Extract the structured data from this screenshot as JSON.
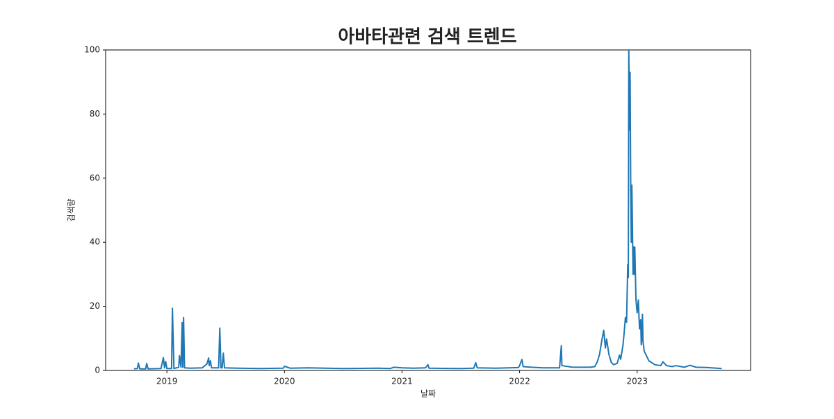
{
  "chart_data": {
    "type": "line",
    "title": "아바타관련 검색 트렌드",
    "x_label": "날짜",
    "y_label": "검색량",
    "color": "#1f77b4",
    "x": [
      2018.72,
      2018.75,
      2018.757,
      2018.77,
      2018.82,
      2018.828,
      2018.84,
      2018.95,
      2018.97,
      2018.98,
      2018.99,
      2019.0,
      2019.04,
      2019.047,
      2019.06,
      2019.1,
      2019.107,
      2019.12,
      2019.13,
      2019.135,
      2019.142,
      2019.15,
      2019.2,
      2019.3,
      2019.34,
      2019.355,
      2019.36,
      2019.37,
      2019.38,
      2019.44,
      2019.45,
      2019.46,
      2019.47,
      2019.48,
      2019.49,
      2019.6,
      2019.8,
      2019.99,
      2020.0,
      2020.05,
      2020.2,
      2020.5,
      2020.8,
      2020.9,
      2020.93,
      2021.0,
      2021.1,
      2021.2,
      2021.22,
      2021.23,
      2021.5,
      2021.61,
      2021.627,
      2021.64,
      2021.8,
      2021.99,
      2022.0,
      2022.02,
      2022.03,
      2022.1,
      2022.2,
      2022.34,
      2022.355,
      2022.36,
      2022.45,
      2022.6,
      2022.64,
      2022.66,
      2022.68,
      2022.7,
      2022.716,
      2022.73,
      2022.74,
      2022.76,
      2022.78,
      2022.8,
      2022.83,
      2022.85,
      2022.86,
      2022.88,
      2022.89,
      2022.9,
      2022.91,
      2022.92,
      2022.925,
      2022.929,
      2022.935,
      2022.94,
      2022.945,
      2022.95,
      2022.955,
      2022.96,
      2022.965,
      2022.97,
      2022.975,
      2022.98,
      2022.99,
      2023.0,
      2023.01,
      2023.02,
      2023.03,
      2023.035,
      2023.04,
      2023.045,
      2023.05,
      2023.06,
      2023.08,
      2023.1,
      2023.15,
      2023.2,
      2023.22,
      2023.25,
      2023.3,
      2023.33,
      2023.4,
      2023.45,
      2023.5,
      2023.6,
      2023.72
    ],
    "values": [
      0.5,
      0.6,
      2.3,
      0.5,
      0.5,
      2.2,
      0.5,
      0.6,
      4,
      0.8,
      2.8,
      0.6,
      0.6,
      19.4,
      0.6,
      1,
      4.6,
      1,
      15,
      1,
      16.5,
      0.8,
      0.7,
      0.8,
      2,
      3.9,
      1.5,
      3,
      0.8,
      0.8,
      13.2,
      0.8,
      0.8,
      5.4,
      0.8,
      0.7,
      0.6,
      0.7,
      1.3,
      0.7,
      0.8,
      0.6,
      0.7,
      0.6,
      1,
      0.8,
      0.7,
      0.8,
      1.8,
      0.7,
      0.6,
      0.7,
      2.4,
      0.8,
      0.7,
      0.9,
      1.5,
      3.4,
      1.2,
      1,
      0.8,
      0.8,
      7.7,
      1.5,
      1,
      1,
      1.2,
      2.6,
      5,
      9.5,
      12.5,
      7,
      9.8,
      5,
      2.5,
      1.8,
      2.2,
      4.8,
      3.5,
      8,
      12,
      16.5,
      15,
      33,
      29,
      100,
      75,
      93,
      60,
      40,
      57.8,
      45,
      30,
      38.5,
      30,
      38.5,
      22,
      18,
      22,
      13,
      15.8,
      8,
      10.5,
      17.5,
      9,
      6,
      4.5,
      3,
      1.8,
      1.5,
      2.7,
      1.5,
      1.2,
      1.5,
      1,
      1.6,
      1,
      0.9,
      0.6
    ],
    "xlim": [
      2018.479,
      2023.965
    ],
    "xticks": [
      2019,
      2020,
      2021,
      2022,
      2023
    ],
    "ylim": [
      0,
      100
    ],
    "yticks": [
      0,
      20,
      40,
      60,
      80,
      100
    ],
    "grid": false
  }
}
